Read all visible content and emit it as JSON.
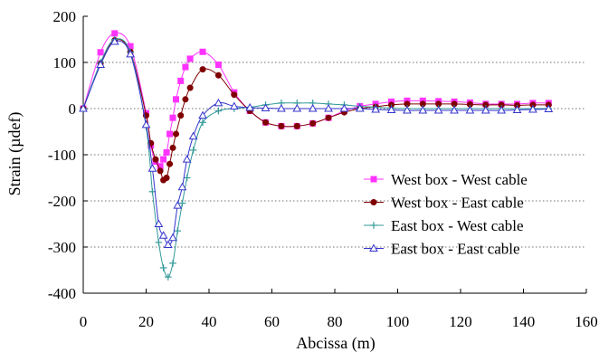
{
  "chart_data": {
    "type": "line",
    "title": "",
    "xlabel": "Abcissa (m)",
    "ylabel": "Strain (µdef)",
    "xlim": [
      0,
      160
    ],
    "ylim": [
      -400,
      200
    ],
    "xticks": [
      0,
      20,
      40,
      60,
      80,
      100,
      120,
      140,
      160
    ],
    "yticks": [
      200,
      100,
      0,
      -100,
      -200,
      -300,
      -400
    ],
    "grid": "horizontal dotted",
    "legend_position": "bottom-right",
    "series": [
      {
        "name": "West box - West cable",
        "color": "#ff33ff",
        "marker": "square",
        "x": [
          0,
          5.5,
          10,
          15,
          20,
          21.5,
          23,
          24.5,
          25.5,
          26.5,
          27.5,
          28.5,
          29.5,
          31,
          32.5,
          34,
          38,
          43,
          48,
          53,
          58,
          63,
          68,
          73,
          78,
          83,
          88,
          93,
          98,
          103,
          108,
          113,
          118,
          123,
          128,
          133,
          138,
          143,
          148
        ],
        "y": [
          0,
          122,
          163,
          135,
          -10,
          -80,
          -115,
          -125,
          -110,
          -95,
          -55,
          -20,
          20,
          60,
          90,
          108,
          123,
          95,
          35,
          -5,
          -30,
          -38,
          -38,
          -32,
          -20,
          -5,
          5,
          10,
          15,
          17,
          17,
          16,
          15,
          13,
          10,
          10,
          10,
          12,
          12
        ]
      },
      {
        "name": "West box - East cable",
        "color": "#800000",
        "marker": "circle",
        "x": [
          0,
          5.5,
          10,
          15,
          20,
          21.5,
          23,
          24.5,
          25.5,
          26.5,
          27.5,
          28.5,
          29.5,
          31,
          32.5,
          34,
          38,
          43,
          48,
          53,
          58,
          63,
          68,
          73,
          78,
          83,
          88,
          93,
          98,
          103,
          108,
          113,
          118,
          123,
          128,
          133,
          138,
          143,
          148
        ],
        "y": [
          0,
          98,
          148,
          123,
          -15,
          -75,
          -110,
          -135,
          -155,
          -150,
          -120,
          -85,
          -55,
          -15,
          20,
          45,
          85,
          72,
          30,
          -5,
          -30,
          -38,
          -38,
          -32,
          -20,
          -8,
          0,
          4,
          8,
          10,
          10,
          10,
          10,
          9,
          8,
          8,
          7,
          8,
          8
        ]
      },
      {
        "name": "East box - West cable",
        "color": "#339999",
        "marker": "plus",
        "x": [
          0,
          5.5,
          10,
          15,
          20,
          22,
          24,
          25.5,
          27,
          28.5,
          30,
          31.5,
          33,
          35,
          38,
          43,
          48,
          53,
          58,
          63,
          68,
          73,
          78,
          83,
          88,
          93,
          98,
          103,
          108,
          113,
          118,
          123,
          128,
          133,
          138,
          143,
          148
        ],
        "y": [
          0,
          100,
          150,
          122,
          -40,
          -180,
          -290,
          -345,
          -365,
          -335,
          -265,
          -205,
          -150,
          -90,
          -30,
          -5,
          0,
          3,
          8,
          12,
          12,
          12,
          10,
          8,
          5,
          3,
          1,
          0,
          0,
          0,
          0,
          0,
          0,
          0,
          0,
          0,
          0
        ]
      },
      {
        "name": "East box - East cable",
        "color": "#3333cc",
        "marker": "triangle",
        "x": [
          0,
          5.5,
          10,
          15,
          20,
          22,
          24,
          25.5,
          27,
          28.5,
          30,
          31.5,
          33,
          35,
          38,
          43,
          48,
          53,
          58,
          63,
          68,
          73,
          78,
          83,
          88,
          93,
          98,
          103,
          108,
          113,
          118,
          123,
          128,
          133,
          138,
          143,
          148
        ],
        "y": [
          0,
          95,
          145,
          118,
          -35,
          -130,
          -250,
          -275,
          -295,
          -280,
          -210,
          -170,
          -110,
          -60,
          -15,
          12,
          5,
          2,
          1,
          0,
          0,
          0,
          0,
          0,
          0,
          -2,
          -3,
          -4,
          -4,
          -4,
          -4,
          -4,
          -4,
          -4,
          -3,
          -2,
          -1
        ]
      }
    ]
  }
}
